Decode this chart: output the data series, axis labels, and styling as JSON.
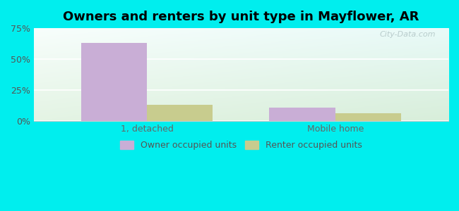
{
  "title": "Owners and renters by unit type in Mayflower, AR",
  "categories": [
    "1, detached",
    "Mobile home"
  ],
  "owner_values": [
    63,
    11
  ],
  "renter_values": [
    13,
    6
  ],
  "owner_color": "#c9aed6",
  "renter_color": "#c8cc8e",
  "ylim": [
    0,
    75
  ],
  "yticks": [
    0,
    25,
    50,
    75
  ],
  "ytick_labels": [
    "0%",
    "25%",
    "50%",
    "75%"
  ],
  "outer_bg": "#00eeee",
  "legend_owner": "Owner occupied units",
  "legend_renter": "Renter occupied units",
  "bar_width": 0.35,
  "watermark": "City-Data.com",
  "title_fontsize": 13,
  "axis_fontsize": 9,
  "legend_fontsize": 9
}
